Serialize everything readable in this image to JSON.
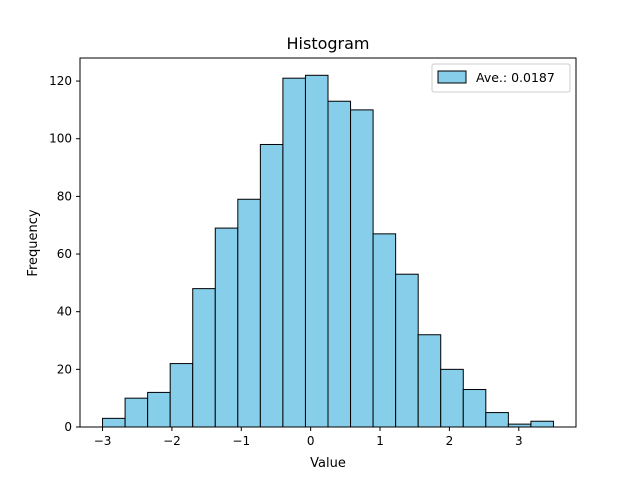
{
  "chart_data": {
    "type": "bar",
    "subtype": "histogram",
    "title": "Histogram",
    "xlabel": "Value",
    "ylabel": "Frequency",
    "bin_edges": [
      -3.0,
      -2.675,
      -2.35,
      -2.025,
      -1.7,
      -1.375,
      -1.05,
      -0.725,
      -0.4,
      -0.075,
      0.25,
      0.575,
      0.9,
      1.225,
      1.55,
      1.875,
      2.2,
      2.525,
      2.85,
      3.175,
      3.5
    ],
    "values": [
      3,
      10,
      12,
      22,
      48,
      69,
      79,
      98,
      121,
      122,
      113,
      110,
      67,
      53,
      32,
      20,
      13,
      5,
      1,
      2
    ],
    "xlim": [
      -3.325,
      3.825
    ],
    "ylim": [
      0,
      128
    ],
    "xticks": [
      -3,
      -2,
      -1,
      0,
      1,
      2,
      3
    ],
    "xtick_labels": [
      "−3",
      "−2",
      "−1",
      "0",
      "1",
      "2",
      "3"
    ],
    "yticks": [
      0,
      20,
      40,
      60,
      80,
      100,
      120
    ],
    "ytick_labels": [
      "0",
      "20",
      "40",
      "60",
      "80",
      "100",
      "120"
    ],
    "legend": {
      "entries": [
        "Ave.: 0.0187"
      ],
      "placement": "top-right"
    },
    "grid": false,
    "colors": {
      "bar_fill": "#87ceeb",
      "bar_edge": "#000000",
      "axes": "#000000"
    }
  }
}
